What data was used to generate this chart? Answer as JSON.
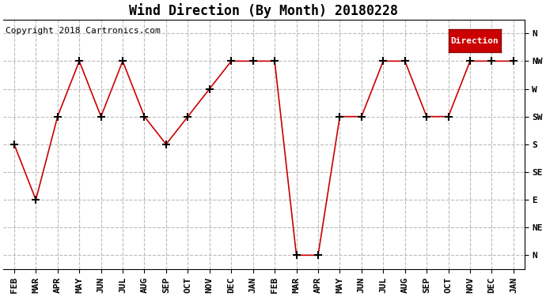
{
  "title": "Wind Direction (By Month) 20180228",
  "copyright": "Copyright 2018 Cartronics.com",
  "legend_label": "Direction",
  "legend_bg": "#cc0000",
  "legend_text_color": "#ffffff",
  "x_labels": [
    "FEB",
    "MAR",
    "APR",
    "MAY",
    "JUN",
    "JUL",
    "AUG",
    "SEP",
    "OCT",
    "NOV",
    "DEC",
    "JAN",
    "FEB",
    "MAR",
    "APR",
    "MAY",
    "JUN",
    "JUL",
    "AUG",
    "SEP",
    "OCT",
    "NOV",
    "DEC",
    "JAN"
  ],
  "y_labels_bottom_to_top": [
    "N",
    "NE",
    "E",
    "SE",
    "S",
    "SW",
    "W",
    "NW",
    "N"
  ],
  "y_labels_top_to_bottom": [
    "N",
    "NW",
    "W",
    "SW",
    "S",
    "SE",
    "E",
    "NE",
    "N"
  ],
  "direction_values": [
    4,
    2,
    5,
    7,
    5,
    7,
    5,
    4,
    5,
    6,
    7,
    7,
    7,
    0,
    0,
    5,
    5,
    7,
    7,
    5,
    5,
    7,
    7,
    7
  ],
  "line_color": "#cc0000",
  "marker": "+",
  "marker_color": "#000000",
  "marker_size": 7,
  "marker_edge_width": 1.5,
  "bg_color": "#ffffff",
  "grid_color": "#bbbbbb",
  "grid_style": "--",
  "title_fontsize": 12,
  "axis_fontsize": 8,
  "copyright_fontsize": 8,
  "legend_fontsize": 8
}
